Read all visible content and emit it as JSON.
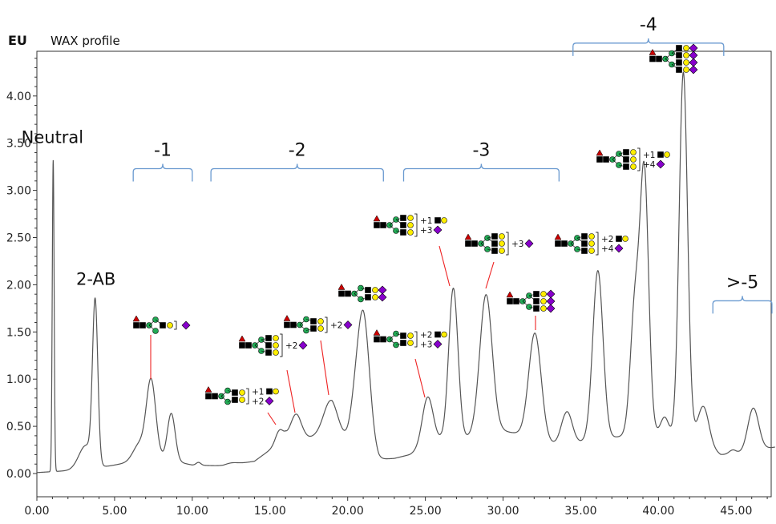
{
  "chart_data": {
    "type": "line",
    "title": "WAX profile",
    "ylabel": "EU",
    "xlabel": "",
    "xlim": [
      0,
      47.5
    ],
    "ylim": [
      -0.3,
      4.45
    ],
    "x_ticks": [
      "0.00",
      "5.00",
      "10.00",
      "15.00",
      "20.00",
      "25.00",
      "30.00",
      "35.00",
      "40.00",
      "45.00"
    ],
    "y_ticks": [
      "0.00",
      "0.50",
      "1.00",
      "1.50",
      "2.00",
      "2.50",
      "3.00",
      "3.50",
      "4.00"
    ],
    "grid": false,
    "line_color": "#555555",
    "baseline": [
      [
        0,
        0.01
      ],
      [
        2,
        0.03
      ],
      [
        4,
        0.06
      ],
      [
        6,
        0.12
      ],
      [
        8,
        0.16
      ],
      [
        10,
        0.09
      ],
      [
        12,
        0.08
      ],
      [
        14,
        0.13
      ],
      [
        15,
        0.25
      ],
      [
        16,
        0.38
      ],
      [
        17,
        0.35
      ],
      [
        18,
        0.4
      ],
      [
        19,
        0.45
      ],
      [
        20,
        0.35
      ],
      [
        21,
        0.3
      ],
      [
        22,
        0.15
      ],
      [
        23,
        0.16
      ],
      [
        24,
        0.2
      ],
      [
        25,
        0.28
      ],
      [
        26,
        0.35
      ],
      [
        27,
        0.33
      ],
      [
        28,
        0.4
      ],
      [
        29,
        0.45
      ],
      [
        30,
        0.45
      ],
      [
        31,
        0.42
      ],
      [
        32,
        0.37
      ],
      [
        33,
        0.32
      ],
      [
        34,
        0.28
      ],
      [
        35,
        0.33
      ],
      [
        36,
        0.38
      ],
      [
        37,
        0.38
      ],
      [
        38,
        0.4
      ],
      [
        39,
        0.5
      ],
      [
        40,
        0.43
      ],
      [
        41,
        0.4
      ],
      [
        42,
        0.4
      ],
      [
        43,
        0.3
      ],
      [
        44,
        0.2
      ],
      [
        45,
        0.2
      ],
      [
        46,
        0.24
      ],
      [
        47.5,
        0.28
      ]
    ],
    "peaks": [
      {
        "x": 1.05,
        "h": 3.3,
        "w": 0.06
      },
      {
        "x": 3.75,
        "h": 1.7,
        "w": 0.17
      },
      {
        "x": 3.15,
        "h": 0.25,
        "w": 0.45
      },
      {
        "x": 7.35,
        "h": 0.83,
        "w": 0.3
      },
      {
        "x": 6.6,
        "h": 0.18,
        "w": 0.4
      },
      {
        "x": 8.65,
        "h": 0.5,
        "w": 0.25
      },
      {
        "x": 10.4,
        "h": 0.03,
        "w": 0.15
      },
      {
        "x": 12.5,
        "h": 0.02,
        "w": 0.4
      },
      {
        "x": 15.6,
        "h": 0.13,
        "w": 0.25
      },
      {
        "x": 16.7,
        "h": 0.27,
        "w": 0.35
      },
      {
        "x": 18.9,
        "h": 0.33,
        "w": 0.45
      },
      {
        "x": 21.0,
        "h": 1.4,
        "w": 0.4
      },
      {
        "x": 20.4,
        "h": 0.2,
        "w": 0.3
      },
      {
        "x": 25.15,
        "h": 0.52,
        "w": 0.35
      },
      {
        "x": 26.8,
        "h": 1.63,
        "w": 0.3
      },
      {
        "x": 28.9,
        "h": 1.45,
        "w": 0.4
      },
      {
        "x": 32.05,
        "h": 1.12,
        "w": 0.4
      },
      {
        "x": 34.1,
        "h": 0.37,
        "w": 0.35
      },
      {
        "x": 36.1,
        "h": 1.77,
        "w": 0.33
      },
      {
        "x": 38.5,
        "h": 1.37,
        "w": 0.3
      },
      {
        "x": 39.1,
        "h": 2.6,
        "w": 0.27
      },
      {
        "x": 41.6,
        "h": 3.85,
        "w": 0.27
      },
      {
        "x": 40.4,
        "h": 0.18,
        "w": 0.25
      },
      {
        "x": 42.9,
        "h": 0.4,
        "w": 0.35
      },
      {
        "x": 44.8,
        "h": 0.05,
        "w": 0.25
      },
      {
        "x": 46.1,
        "h": 0.45,
        "w": 0.35
      }
    ],
    "group_brackets": [
      {
        "label": "-1",
        "x1": 6.2,
        "x2": 10.0,
        "y": 3.23
      },
      {
        "label": "-2",
        "x1": 11.2,
        "x2": 22.3,
        "y": 3.23
      },
      {
        "label": "-3",
        "x1": 23.6,
        "x2": 33.6,
        "y": 3.23
      },
      {
        "label": "-4",
        "x1": 34.5,
        "x2": 44.2,
        "y": 4.56
      },
      {
        "label": ">-5",
        "x1": 43.5,
        "x2": 47.3,
        "y": 1.83
      }
    ],
    "peak_labels": [
      {
        "text": "Neutral",
        "x": 1.0,
        "y": 3.5
      },
      {
        "text": "2-AB",
        "x": 3.8,
        "y": 2.0
      }
    ],
    "glycan_annotations": [
      {
        "id": "g1",
        "left": 166,
        "top": 394,
        "arms": [
          [
            "yellow"
          ]
        ],
        "right": "sia",
        "line": [
          188,
          418,
          188,
          473
        ]
      },
      {
        "id": "g2",
        "left": 256,
        "top": 478,
        "arms": [
          [
            "yellow"
          ],
          [
            "yellow"
          ]
        ],
        "right": "t-1-2",
        "line": [
          334,
          515,
          344,
          530
        ]
      },
      {
        "id": "g3",
        "left": 298,
        "top": 410,
        "arms": [
          [
            "yellow"
          ],
          [
            "yellow"
          ],
          [
            "yellow"
          ]
        ],
        "right": "t-2",
        "line": [
          358,
          462,
          368,
          515
        ]
      },
      {
        "id": "g4",
        "left": 354,
        "top": 389,
        "arms": [
          [
            "yellow"
          ],
          [
            "yellow"
          ]
        ],
        "right": "t-2b",
        "line": [
          400,
          425,
          410,
          493
        ]
      },
      {
        "id": "g5",
        "left": 422,
        "top": 350,
        "arms": [
          [
            "yellow",
            "purple"
          ],
          [
            "yellow",
            "purple"
          ]
        ],
        "right": "",
        "line": []
      },
      {
        "id": "g6",
        "left": 466,
        "top": 260,
        "arms": [
          [
            "yellow"
          ],
          [
            "yellow"
          ],
          [
            "yellow"
          ]
        ],
        "right": "t-1-3",
        "line": [
          548,
          307,
          561,
          357
        ]
      },
      {
        "id": "g7",
        "left": 466,
        "top": 407,
        "arms": [
          [
            "yellow"
          ],
          [
            "yellow"
          ]
        ],
        "right": "t-2-3",
        "line": [
          518,
          448,
          530,
          496
        ]
      },
      {
        "id": "g8",
        "left": 580,
        "top": 283,
        "arms": [
          [
            "yellow"
          ],
          [
            "yellow"
          ],
          [
            "yellow"
          ]
        ],
        "right": "t-3",
        "line": [
          616,
          327,
          606,
          360
        ]
      },
      {
        "id": "g9",
        "left": 632,
        "top": 355,
        "arms": [
          [
            "yellow",
            "purple"
          ],
          [
            "yellow",
            "purple"
          ],
          [
            "yellow",
            "purple"
          ]
        ],
        "right": "",
        "line": [
          668,
          394,
          668,
          412
        ]
      },
      {
        "id": "g10",
        "left": 692,
        "top": 283,
        "arms": [
          [
            "yellow"
          ],
          [
            "yellow"
          ],
          [
            "yellow"
          ]
        ],
        "right": "t-2-4",
        "line": []
      },
      {
        "id": "g11",
        "left": 744,
        "top": 178,
        "arms": [
          [
            "yellow"
          ],
          [
            "yellow"
          ],
          [
            "yellow"
          ]
        ],
        "right": "t-1-4",
        "line": []
      },
      {
        "id": "g12",
        "left": 810,
        "top": 48,
        "arms": [
          [
            "yellow",
            "purple"
          ],
          [
            "yellow",
            "purple"
          ],
          [
            "yellow",
            "purple"
          ],
          [
            "yellow",
            "purple"
          ]
        ],
        "right": "",
        "line": []
      }
    ],
    "annotation_texts": {
      "t-1-2": [
        "+1",
        "+2"
      ],
      "t-2": [
        "+2"
      ],
      "t-2b": [
        "+2"
      ],
      "t-1-3": [
        "+1",
        "+3"
      ],
      "t-2-3": [
        "+2",
        "+3"
      ],
      "t-3": [
        "+3"
      ],
      "t-2-4": [
        "+2",
        "+4"
      ],
      "t-1-4": [
        "+1",
        "+4"
      ]
    },
    "colors": {
      "fucose": "#cc0000",
      "glcnac": "#0033cc",
      "mannose": "#22aa55",
      "galactose": "#ffee00",
      "sialic": "#8800cc",
      "bracket": "#6a9ad0",
      "lead_line": "#ee2222"
    }
  }
}
